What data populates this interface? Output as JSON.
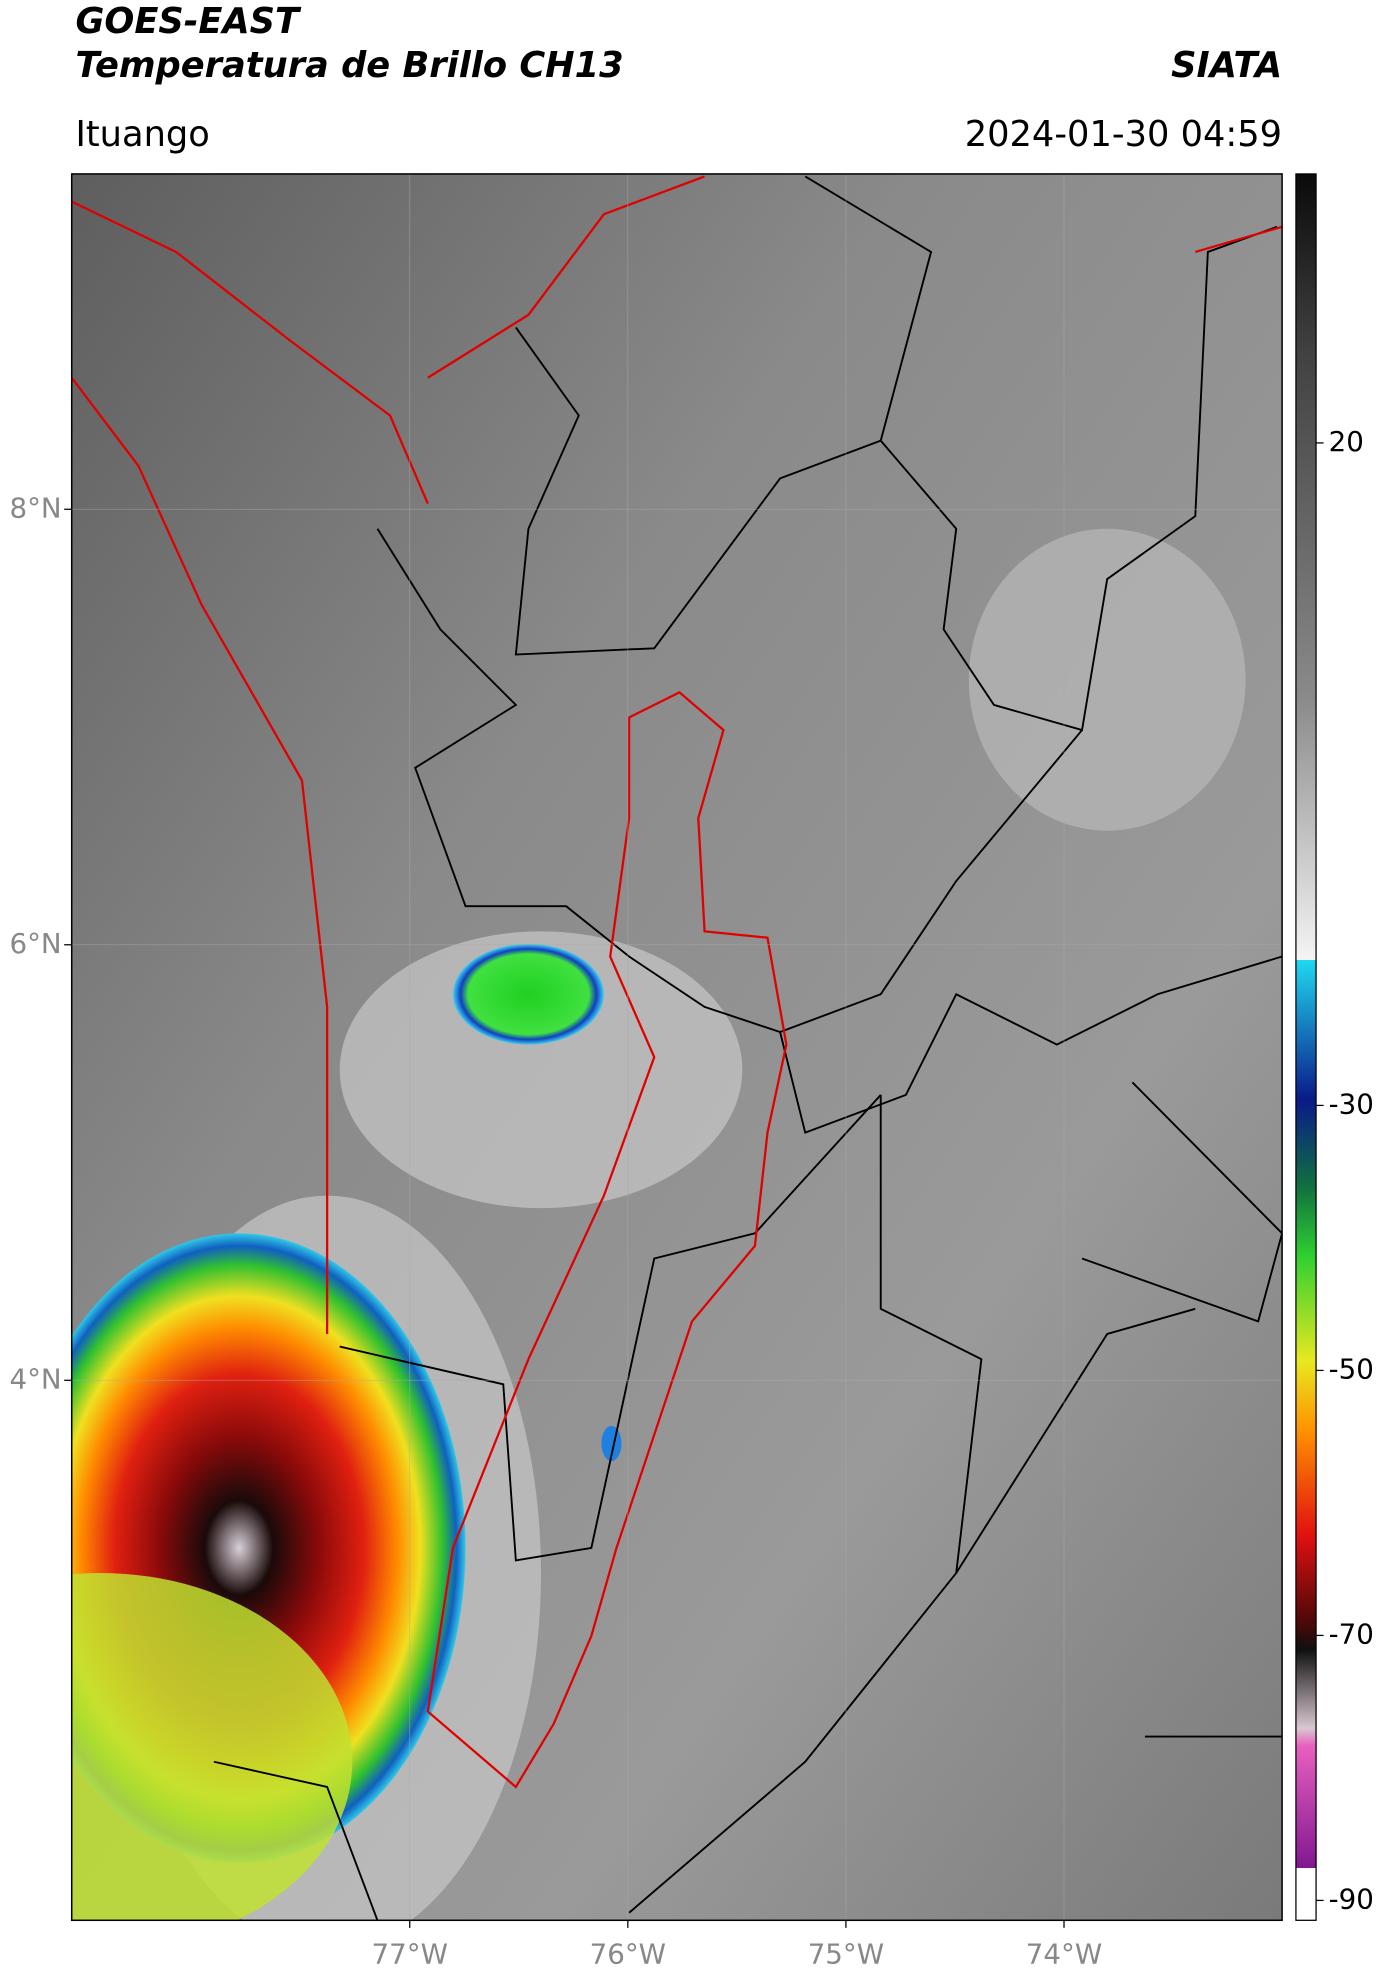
{
  "header": {
    "title": "GOES-EAST",
    "subtitle": "Temperatura de Brillo CH13",
    "brand": "SIATA",
    "location": "Ituango",
    "timestamp": "2024-01-30 04:59"
  },
  "map": {
    "lonlim": [
      -78.55,
      -73.0
    ],
    "latlim": [
      1.52,
      9.54
    ],
    "grid": true,
    "lonticks": [
      {
        "value": -77,
        "label": "77°W"
      },
      {
        "value": -76,
        "label": "76°W"
      },
      {
        "value": -75,
        "label": "75°W"
      },
      {
        "value": -74,
        "label": "74°W"
      }
    ],
    "latticks": [
      {
        "value": 8,
        "label": "8°N"
      },
      {
        "value": 6,
        "label": "6°N"
      },
      {
        "value": 4,
        "label": "4°N"
      }
    ]
  },
  "colorbar": {
    "lim": [
      -91.5,
      40.3
    ],
    "ticks": [
      20,
      -30,
      -50,
      -70,
      -90
    ]
  }
}
